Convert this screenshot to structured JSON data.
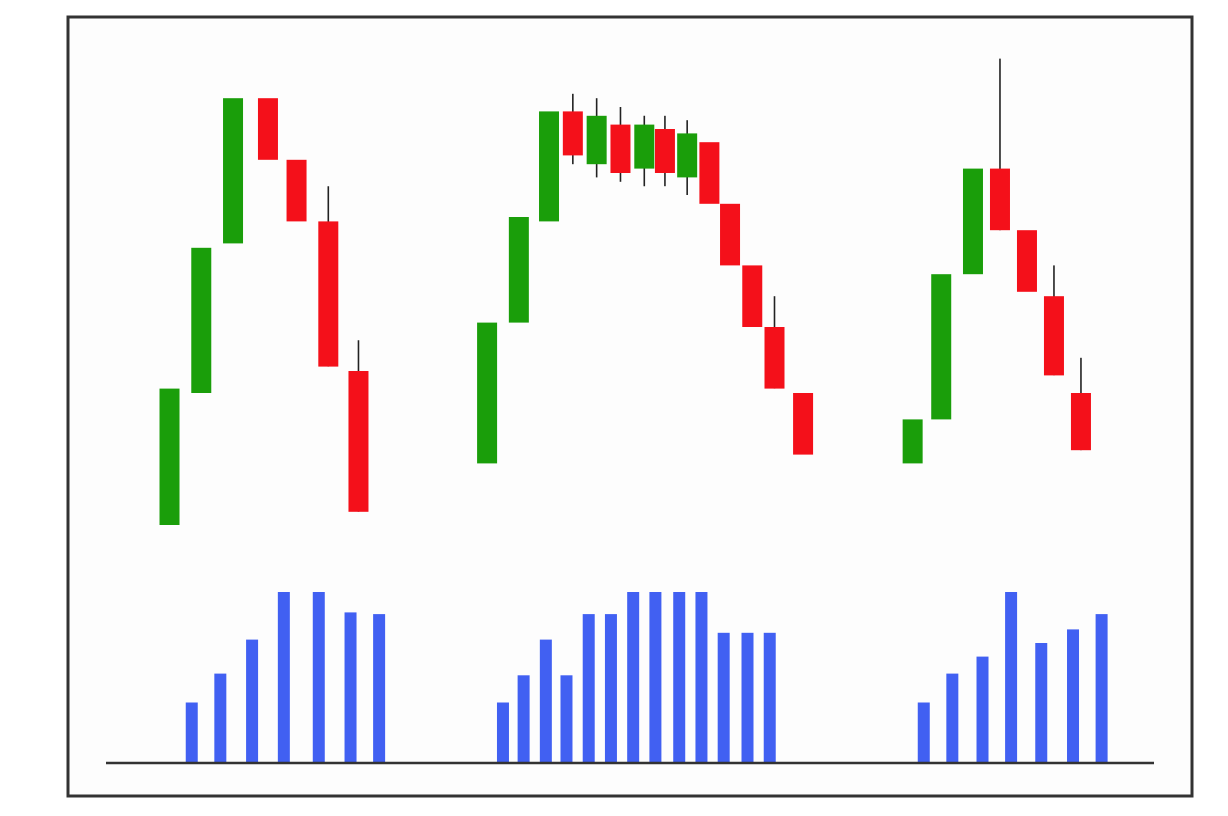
{
  "chart_data": {
    "type": "candlestick",
    "title": "",
    "xlabel": "",
    "ylabel": "",
    "axes_visible": false,
    "grid": false,
    "legend": "none",
    "colors": {
      "up": "#1a9e0a",
      "down": "#f4101a",
      "volume": "#4160f2",
      "wick": "#222222",
      "frame": "#333333",
      "background": "#fdfdfd"
    },
    "price_range": [
      0,
      100
    ],
    "volume_range": [
      0,
      100
    ],
    "groups": [
      {
        "candles": [
          {
            "x": 1.0,
            "open": 0,
            "close": 31,
            "high": 31,
            "low": 0
          },
          {
            "x": 2.0,
            "open": 30,
            "close": 63,
            "high": 63,
            "low": 30
          },
          {
            "x": 3.0,
            "open": 64,
            "close": 97,
            "high": 97,
            "low": 64
          },
          {
            "x": 4.1,
            "open": 97,
            "close": 83,
            "high": 97,
            "low": 83
          },
          {
            "x": 5.0,
            "open": 83,
            "close": 69,
            "high": 83,
            "low": 69
          },
          {
            "x": 6.0,
            "open": 69,
            "close": 36,
            "high": 77,
            "low": 36
          },
          {
            "x": 6.95,
            "open": 35,
            "close": 3,
            "high": 42,
            "low": 3
          }
        ],
        "volumes": [
          {
            "x": 1.7,
            "value": 35
          },
          {
            "x": 2.6,
            "value": 52
          },
          {
            "x": 3.6,
            "value": 72
          },
          {
            "x": 4.6,
            "value": 100
          },
          {
            "x": 5.7,
            "value": 100
          },
          {
            "x": 6.7,
            "value": 88
          },
          {
            "x": 7.6,
            "value": 87
          }
        ]
      },
      {
        "candles": [
          {
            "x": 11.0,
            "open": 14,
            "close": 46,
            "high": 46,
            "low": 14
          },
          {
            "x": 12.0,
            "open": 46,
            "close": 70,
            "high": 70,
            "low": 46
          },
          {
            "x": 12.95,
            "open": 69,
            "close": 94,
            "high": 94,
            "low": 69
          },
          {
            "x": 13.7,
            "open": 94,
            "close": 84,
            "high": 98,
            "low": 82
          },
          {
            "x": 14.45,
            "open": 82,
            "close": 93,
            "high": 97,
            "low": 79
          },
          {
            "x": 15.2,
            "open": 91,
            "close": 80,
            "high": 95,
            "low": 78
          },
          {
            "x": 15.95,
            "open": 81,
            "close": 91,
            "high": 93,
            "low": 77
          },
          {
            "x": 16.6,
            "open": 90,
            "close": 80,
            "high": 93,
            "low": 77
          },
          {
            "x": 17.3,
            "open": 79,
            "close": 89,
            "high": 92,
            "low": 75
          },
          {
            "x": 18.0,
            "open": 87,
            "close": 73,
            "high": 87,
            "low": 73
          },
          {
            "x": 18.65,
            "open": 73,
            "close": 59,
            "high": 73,
            "low": 59
          },
          {
            "x": 19.35,
            "open": 59,
            "close": 45,
            "high": 59,
            "low": 45
          },
          {
            "x": 20.05,
            "open": 45,
            "close": 31,
            "high": 52,
            "low": 31
          },
          {
            "x": 20.95,
            "open": 30,
            "close": 16,
            "high": 30,
            "low": 16
          }
        ],
        "volumes": [
          {
            "x": 11.5,
            "value": 35
          },
          {
            "x": 12.15,
            "value": 51
          },
          {
            "x": 12.85,
            "value": 72
          },
          {
            "x": 13.5,
            "value": 51
          },
          {
            "x": 14.2,
            "value": 87
          },
          {
            "x": 14.9,
            "value": 87
          },
          {
            "x": 15.6,
            "value": 100
          },
          {
            "x": 16.3,
            "value": 100
          },
          {
            "x": 17.05,
            "value": 100
          },
          {
            "x": 17.75,
            "value": 100
          },
          {
            "x": 18.45,
            "value": 76
          },
          {
            "x": 19.2,
            "value": 76
          },
          {
            "x": 19.9,
            "value": 76
          }
        ]
      },
      {
        "candles": [
          {
            "x": 24.4,
            "open": 14,
            "close": 24,
            "high": 24,
            "low": 14
          },
          {
            "x": 25.3,
            "open": 24,
            "close": 57,
            "high": 57,
            "low": 24
          },
          {
            "x": 26.3,
            "open": 57,
            "close": 81,
            "high": 81,
            "low": 57
          },
          {
            "x": 27.15,
            "open": 81,
            "close": 67,
            "high": 106,
            "low": 67
          },
          {
            "x": 28.0,
            "open": 67,
            "close": 53,
            "high": 67,
            "low": 53
          },
          {
            "x": 28.85,
            "open": 52,
            "close": 34,
            "high": 59,
            "low": 34
          },
          {
            "x": 29.7,
            "open": 30,
            "close": 17,
            "high": 38,
            "low": 17
          }
        ],
        "volumes": [
          {
            "x": 24.75,
            "value": 35
          },
          {
            "x": 25.65,
            "value": 52
          },
          {
            "x": 26.6,
            "value": 62
          },
          {
            "x": 27.5,
            "value": 100
          },
          {
            "x": 28.45,
            "value": 70
          },
          {
            "x": 29.45,
            "value": 78
          },
          {
            "x": 30.35,
            "value": 87
          }
        ]
      }
    ],
    "x_range": [
      -1,
      32
    ]
  }
}
